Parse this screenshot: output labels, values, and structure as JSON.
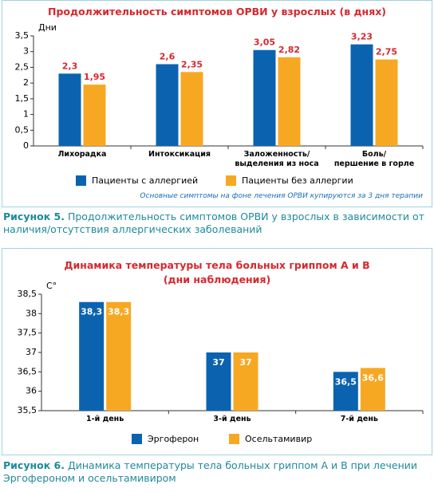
{
  "chart_data": [
    {
      "type": "bar",
      "title": "Продолжительность симптомов ОРВИ у взрослых (в днях)",
      "y_label": "Дни",
      "categories": [
        "Лихорадка",
        "Интоксикация",
        "Заложенность/\nвыделения из носа",
        "Боль/\nпершение в горле"
      ],
      "series": [
        {
          "name": "Пациенты с аллергией",
          "color": "#0b63b0",
          "values": [
            2.3,
            2.6,
            3.05,
            3.23
          ],
          "value_labels": [
            "2,3",
            "2,6",
            "3,05",
            "3,23"
          ]
        },
        {
          "name": "Пациенты без аллергии",
          "color": "#f7a823",
          "values": [
            1.95,
            2.35,
            2.82,
            2.75
          ],
          "value_labels": [
            "1,95",
            "2,35",
            "2,82",
            "2,75"
          ]
        }
      ],
      "ylim": [
        0,
        3.5
      ],
      "yticks": [
        0,
        {
          "value": 0.5,
          "label": "0,5"
        },
        1,
        {
          "value": 1.5,
          "label": "1,5"
        },
        2,
        {
          "value": 2.5,
          "label": "2,5"
        },
        3,
        {
          "value": 3.5,
          "label": "3,5"
        }
      ],
      "value_label_position": "above",
      "note": "Основные симптомы на фоне лечения ОРВИ купируются за 3 дня терапии",
      "caption_label": "Рисунок 5.",
      "caption": "Продолжительность симптомов ОРВИ у взрослых в зависимости от наличия/отсутствия аллергических заболеваний"
    },
    {
      "type": "bar",
      "title": "Динамика температуры тела больных гриппом А и В\n(дни наблюдения)",
      "y_label": "С°",
      "categories": [
        "1-й день",
        "3-й день",
        "7-й день"
      ],
      "series": [
        {
          "name": "Эргоферон",
          "color": "#0b63b0",
          "values": [
            38.3,
            37,
            36.5
          ],
          "value_labels": [
            "38,3",
            "37",
            "36,5"
          ]
        },
        {
          "name": "Осельтамивир",
          "color": "#f7a823",
          "values": [
            38.3,
            37,
            36.6
          ],
          "value_labels": [
            "38,3",
            "37",
            "36,6"
          ]
        }
      ],
      "ylim": [
        35.5,
        38.5
      ],
      "yticks": [
        {
          "value": 35.5,
          "label": "35,5"
        },
        36,
        {
          "value": 36.5,
          "label": "36,5"
        },
        37,
        {
          "value": 37.5,
          "label": "37,5"
        },
        38,
        {
          "value": 38.5,
          "label": "38,5"
        }
      ],
      "value_label_position": "inside",
      "caption_label": "Рисунок 6.",
      "caption": "Динамика температуры тела больных гриппом А и В при лечении Эргофероном и осельтамивиром"
    }
  ]
}
